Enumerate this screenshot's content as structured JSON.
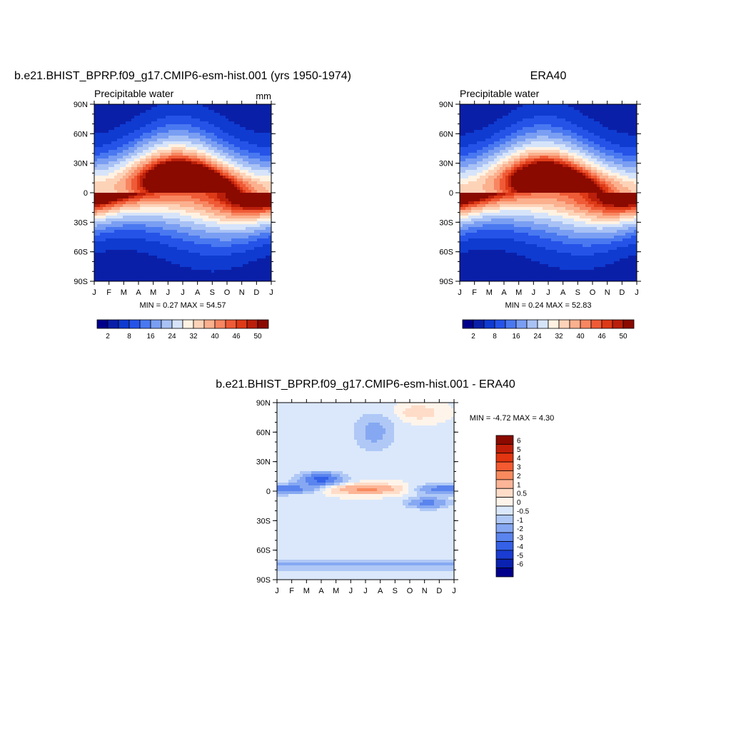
{
  "panels": {
    "model": {
      "title": "b.e21.BHIST_BPRP.f09_g17.CMIP6-esm-hist.001 (yrs 1950-1974)",
      "left_label": "Precipitable water",
      "right_label": "mm",
      "minmax": "MIN =   0.27 MAX =  54.57"
    },
    "obs": {
      "title": "ERA40",
      "left_label": "Precipitable water",
      "right_label": "",
      "minmax": "MIN =   0.24 MAX =  52.83"
    },
    "diff": {
      "title": "b.e21.BHIST_BPRP.f09_g17.CMIP6-esm-hist.001 - ERA40",
      "minmax": "MIN =  -4.72 MAX =   4.30"
    }
  },
  "axes": {
    "x_ticks": [
      "J",
      "F",
      "M",
      "A",
      "M",
      "J",
      "J",
      "A",
      "S",
      "O",
      "N",
      "D",
      "J"
    ],
    "y_ticks": [
      "90N",
      "60N",
      "30N",
      "0",
      "30S",
      "60S",
      "90S"
    ]
  },
  "colorbars": {
    "abs_labels": [
      "2",
      "8",
      "16",
      "24",
      "32",
      "40",
      "46",
      "50"
    ],
    "abs_colors": [
      "#00008b",
      "#0a1fa8",
      "#0f3bd0",
      "#2553e8",
      "#4a78f0",
      "#7a9ef2",
      "#a9c2f5",
      "#d6e4fa",
      "#fff2e3",
      "#fdd3b8",
      "#fbb08e",
      "#f78661",
      "#ef5b36",
      "#de3a17",
      "#ba1f0b",
      "#8a0a00"
    ],
    "diff_labels": [
      "6",
      "5",
      "4",
      "3",
      "2",
      "1",
      "0.5",
      "0",
      "-0.5",
      "-1",
      "-2",
      "-3",
      "-4",
      "-5",
      "-6"
    ],
    "diff_colors": [
      "#8a0a00",
      "#c01e08",
      "#e23510",
      "#f55a30",
      "#f98a5e",
      "#fcb596",
      "#fedcc8",
      "#fff4ea",
      "#dbe8fb",
      "#afc8f6",
      "#86a8f2",
      "#5a84ee",
      "#3461e8",
      "#1a3cd2",
      "#0a22b0",
      "#00008b"
    ]
  },
  "chart_data": [
    {
      "type": "heatmap",
      "title": "b.e21.BHIST_BPRP.f09_g17.CMIP6-esm-hist.001 (yrs 1950-1974)",
      "variable": "Precipitable water",
      "units": "mm",
      "x": [
        "J",
        "F",
        "M",
        "A",
        "M",
        "J",
        "J",
        "A",
        "S",
        "O",
        "N",
        "D",
        "J"
      ],
      "y": [
        "90N",
        "60N",
        "30N",
        "0",
        "30S",
        "60S",
        "90S"
      ],
      "min": 0.27,
      "max": 54.57,
      "levels": [
        2,
        8,
        16,
        24,
        32,
        40,
        46,
        50
      ]
    },
    {
      "type": "heatmap",
      "title": "ERA40",
      "variable": "Precipitable water",
      "x": [
        "J",
        "F",
        "M",
        "A",
        "M",
        "J",
        "J",
        "A",
        "S",
        "O",
        "N",
        "D",
        "J"
      ],
      "y": [
        "90N",
        "60N",
        "30N",
        "0",
        "30S",
        "60S",
        "90S"
      ],
      "min": 0.24,
      "max": 52.83,
      "levels": [
        2,
        8,
        16,
        24,
        32,
        40,
        46,
        50
      ]
    },
    {
      "type": "heatmap",
      "title": "b.e21.BHIST_BPRP.f09_g17.CMIP6-esm-hist.001 - ERA40",
      "x": [
        "J",
        "F",
        "M",
        "A",
        "M",
        "J",
        "J",
        "A",
        "S",
        "O",
        "N",
        "D",
        "J"
      ],
      "y": [
        "90N",
        "60N",
        "30N",
        "0",
        "30S",
        "60S",
        "90S"
      ],
      "min": -4.72,
      "max": 4.3,
      "levels": [
        -6,
        -5,
        -4,
        -3,
        -2,
        -1,
        -0.5,
        0,
        0.5,
        1,
        2,
        3,
        4,
        5,
        6
      ]
    }
  ]
}
